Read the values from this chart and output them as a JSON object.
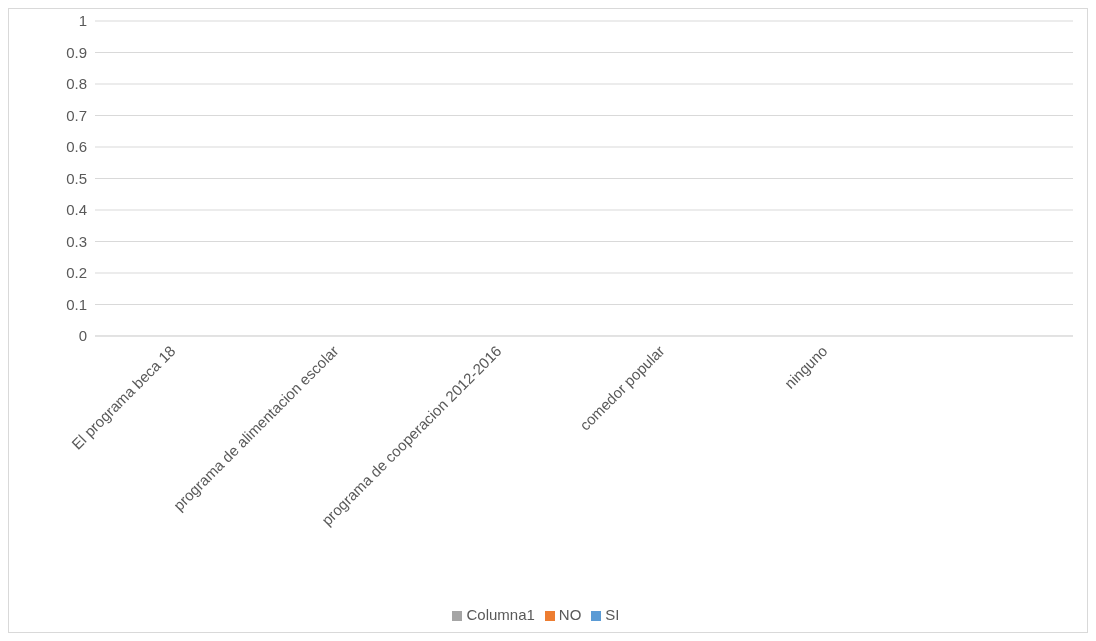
{
  "chart_data": {
    "type": "bar",
    "categories": [
      "El programa beca 18",
      "programa de alimentacion escolar",
      "programa de cooperacion 2012-2016",
      "comedor popular",
      "ninguno",
      null
    ],
    "series": [
      {
        "name": "SI",
        "color": "#5b9bd5",
        "values": [
          null,
          null,
          null,
          null,
          null,
          null
        ]
      },
      {
        "name": "NO",
        "color": "#ed7d31",
        "values": [
          null,
          null,
          null,
          null,
          null,
          null
        ]
      },
      {
        "name": "Columna1",
        "color": "#a5a5a5",
        "values": [
          null,
          null,
          null,
          null,
          null,
          null
        ]
      }
    ],
    "ylim": [
      0,
      1
    ],
    "yticks": [
      0,
      0.1,
      0.2,
      0.3,
      0.4,
      0.5,
      0.6,
      0.7,
      0.8,
      0.9,
      1
    ],
    "grid": "y",
    "legend": "bottom"
  }
}
